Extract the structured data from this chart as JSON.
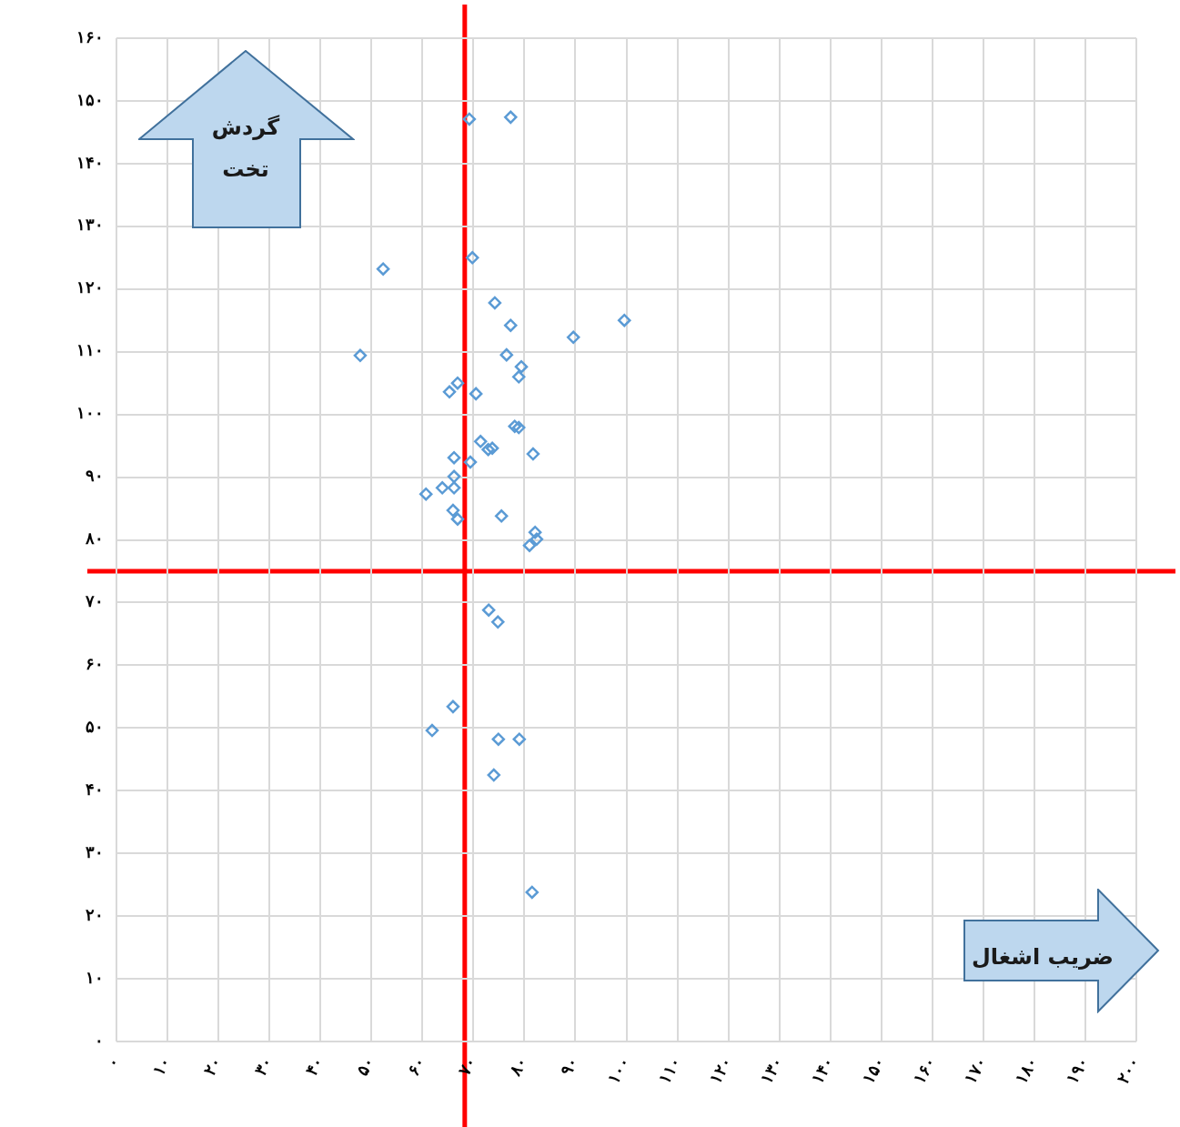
{
  "chart_data": {
    "type": "scatter",
    "marker": "diamond",
    "grid": true,
    "legend": false,
    "annotations": [
      "گردش تخت",
      "ضریب اشغال"
    ],
    "xlim": [
      0,
      200
    ],
    "ylim": [
      0,
      160
    ],
    "xticks": [
      {
        "value": 0,
        "label": "۰"
      },
      {
        "value": 10,
        "label": "۱۰"
      },
      {
        "value": 20,
        "label": "۲۰"
      },
      {
        "value": 30,
        "label": "۳۰"
      },
      {
        "value": 40,
        "label": "۴۰"
      },
      {
        "value": 50,
        "label": "۵۰"
      },
      {
        "value": 60,
        "label": "۶۰"
      },
      {
        "value": 70,
        "label": "۷۰"
      },
      {
        "value": 80,
        "label": "۸۰"
      },
      {
        "value": 90,
        "label": "۹۰"
      },
      {
        "value": 100,
        "label": "۱۰۰"
      },
      {
        "value": 110,
        "label": "۱۱۰"
      },
      {
        "value": 120,
        "label": "۱۲۰"
      },
      {
        "value": 130,
        "label": "۱۳۰"
      },
      {
        "value": 140,
        "label": "۱۴۰"
      },
      {
        "value": 150,
        "label": "۱۵۰"
      },
      {
        "value": 160,
        "label": "۱۶۰"
      },
      {
        "value": 170,
        "label": "۱۷۰"
      },
      {
        "value": 180,
        "label": "۱۸۰"
      },
      {
        "value": 190,
        "label": "۱۹۰"
      },
      {
        "value": 200,
        "label": "۲۰۰"
      }
    ],
    "yticks": [
      {
        "value": 0,
        "label": "۰"
      },
      {
        "value": 10,
        "label": "۱۰"
      },
      {
        "value": 20,
        "label": "۲۰"
      },
      {
        "value": 30,
        "label": "۳۰"
      },
      {
        "value": 40,
        "label": "۴۰"
      },
      {
        "value": 50,
        "label": "۵۰"
      },
      {
        "value": 60,
        "label": "۶۰"
      },
      {
        "value": 70,
        "label": "۷۰"
      },
      {
        "value": 80,
        "label": "۸۰"
      },
      {
        "value": 90,
        "label": "۹۰"
      },
      {
        "value": 100,
        "label": "۱۰۰"
      },
      {
        "value": 110,
        "label": "۱۱۰"
      },
      {
        "value": 120,
        "label": "۱۲۰"
      },
      {
        "value": 130,
        "label": "۱۳۰"
      },
      {
        "value": 140,
        "label": "۱۴۰"
      },
      {
        "value": 150,
        "label": "۱۵۰"
      },
      {
        "value": 160,
        "label": "۱۶۰"
      }
    ],
    "ref_lines": [
      {
        "axis": "x",
        "value": 68.3,
        "color": "#ff0000"
      },
      {
        "axis": "y",
        "value": 75,
        "color": "#ff0000"
      }
    ],
    "series": [
      {
        "color": "#5b9bd5",
        "x": [
          69.2,
          77.3,
          69.8,
          52.3,
          74.2,
          77.3,
          99.6,
          89.6,
          47.8,
          76.5,
          79.4,
          78.9,
          66.9,
          65.3,
          70.5,
          78.1,
          78.9,
          71.4,
          72.9,
          73.7,
          81.7,
          66.2,
          69.4,
          66.2,
          63.9,
          66.2,
          60.7,
          66.0,
          66.9,
          75.5,
          82.1,
          82.4,
          81.0,
          73.0,
          74.8,
          66.0,
          61.9,
          74.9,
          79.0,
          74.0,
          81.5
        ],
        "values": [
          147.1,
          147.4,
          125.0,
          123.2,
          117.8,
          114.2,
          115.0,
          112.3,
          109.4,
          109.5,
          107.6,
          106.0,
          105.0,
          103.6,
          103.3,
          98.1,
          97.9,
          95.7,
          94.4,
          94.6,
          93.7,
          93.1,
          92.4,
          90.1,
          88.3,
          88.3,
          87.3,
          84.7,
          83.3,
          83.8,
          81.2,
          80.1,
          79.1,
          68.8,
          66.9,
          53.4,
          49.6,
          48.2,
          48.2,
          42.5,
          23.8
        ]
      }
    ]
  }
}
